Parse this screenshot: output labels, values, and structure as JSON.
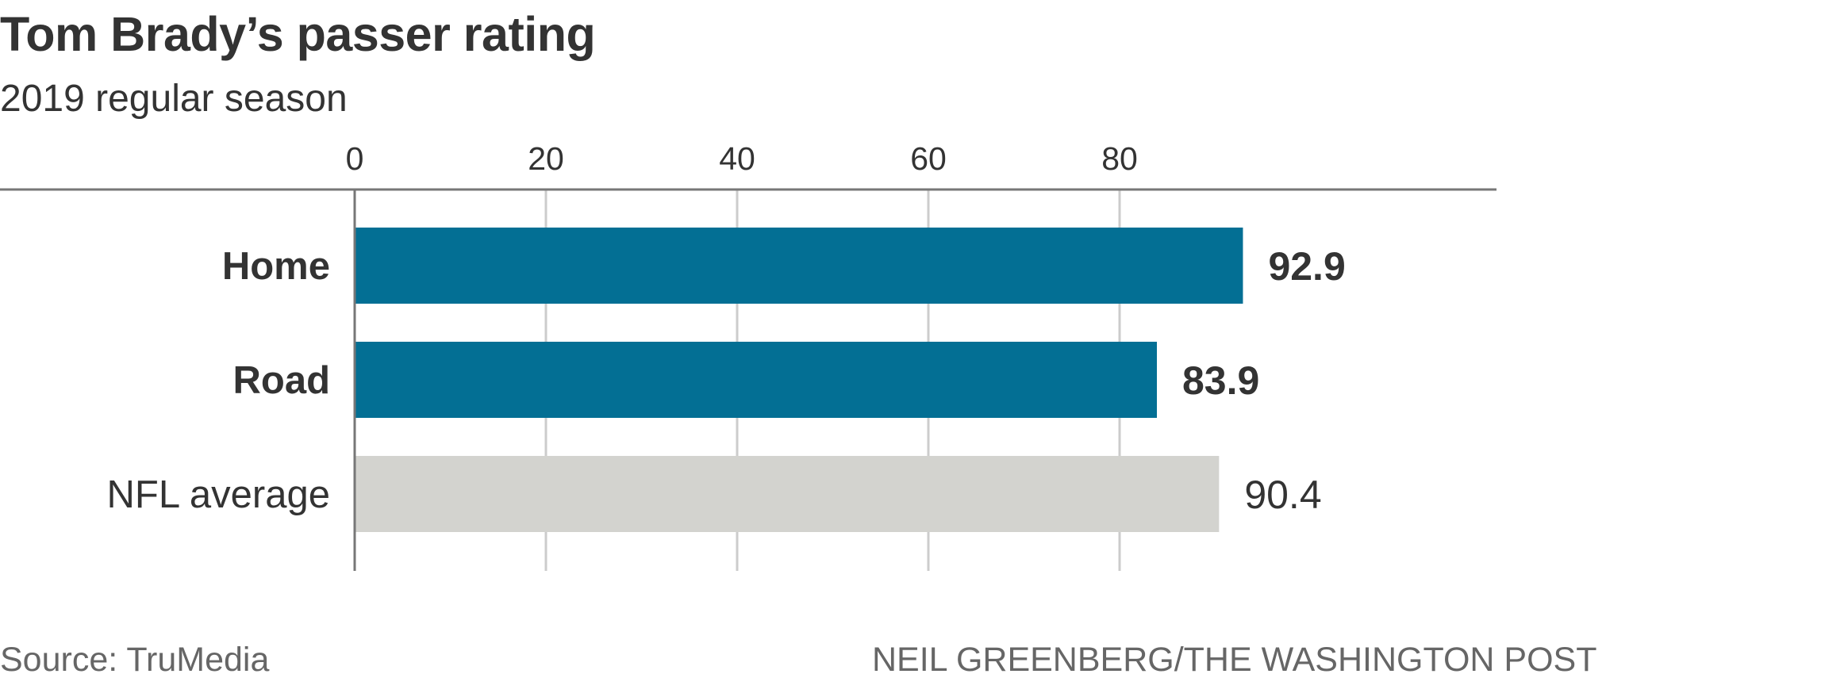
{
  "chart_data": {
    "type": "bar",
    "orientation": "horizontal",
    "title": "Tom Brady’s passer rating",
    "subtitle": "2019 regular season",
    "categories": [
      "Home",
      "Road",
      "NFL average"
    ],
    "values": [
      92.9,
      83.9,
      90.4
    ],
    "value_labels": [
      "92.9",
      "83.9",
      "90.4"
    ],
    "emphasis": [
      true,
      true,
      false
    ],
    "bar_colors": [
      "#036f94",
      "#036f94",
      "#d3d3cf"
    ],
    "xlim": [
      0,
      120
    ],
    "xticks": [
      0,
      20,
      40,
      60,
      80
    ],
    "xtick_labels": [
      "0",
      "20",
      "40",
      "60",
      "80"
    ],
    "grid": true,
    "source": "Source: TruMedia",
    "credit": "NEIL GREENBERG/THE WASHINGTON POST"
  }
}
